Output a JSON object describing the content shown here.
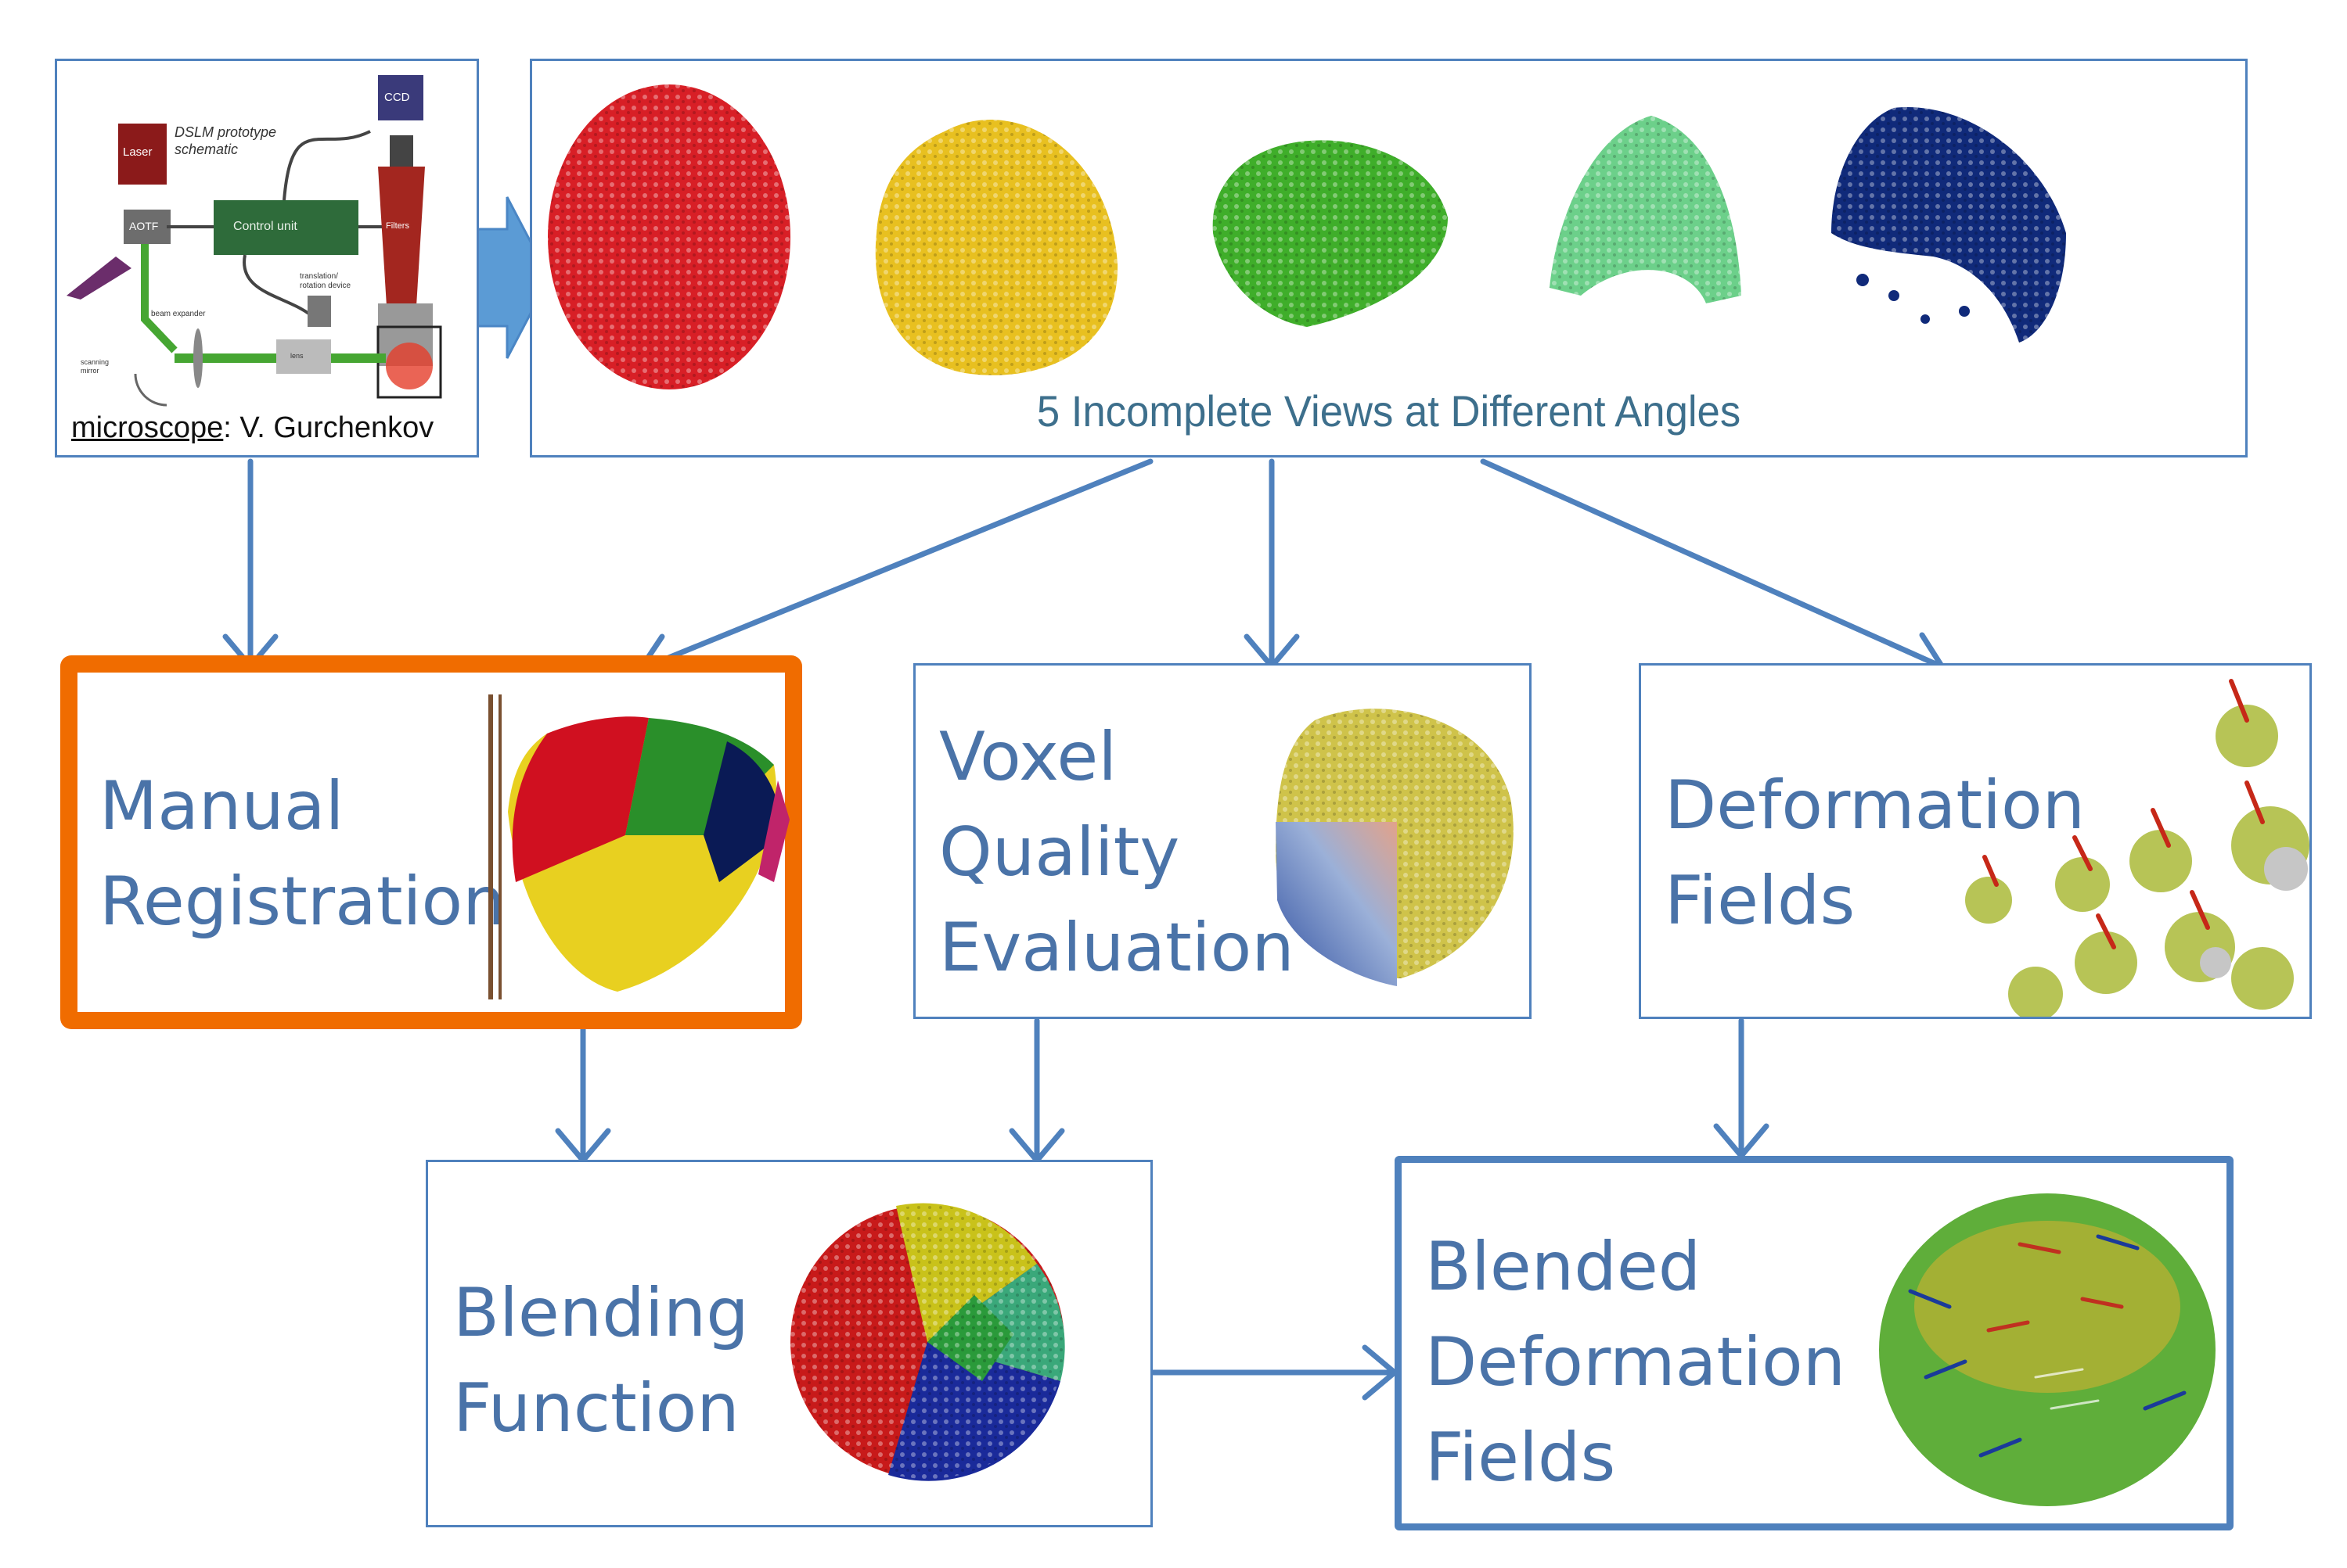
{
  "microscope": {
    "credit_prefix": "microscope",
    "credit_name": ": V. Gurchenkov",
    "schematic_title": "DSLM prototype\nschematic",
    "laser_label": "Laser",
    "ccd_label": "CCD",
    "control_unit_label": "Control unit",
    "aotf_label": "AOTF",
    "filters_label": "Filters",
    "beam_expander_label": "beam expander",
    "translation_label": "translation/\nrotation device",
    "scanning_mirror_label": "scanning\nmirror",
    "lens_label": "lens"
  },
  "views": {
    "caption": "5 Incomplete Views at Different Angles",
    "colors": [
      "#d81f26",
      "#e8c020",
      "#3fae2a",
      "#6cd08a",
      "#102a7a"
    ]
  },
  "nodes": {
    "manual_registration": "Manual\nRegistration",
    "voxel_quality": "Voxel\nQuality\nEvaluation",
    "deformation_fields": "Deformation\nFields",
    "blending_function": "Blending\nFunction",
    "blended_deformation": "Blended\nDeformation\nFields"
  },
  "colors": {
    "arrow": "#4f81bd",
    "box_border": "#4f81bd",
    "highlight_border": "#f06c00",
    "label_text": "#4a73a8",
    "caption_text": "#3d6f8c"
  }
}
